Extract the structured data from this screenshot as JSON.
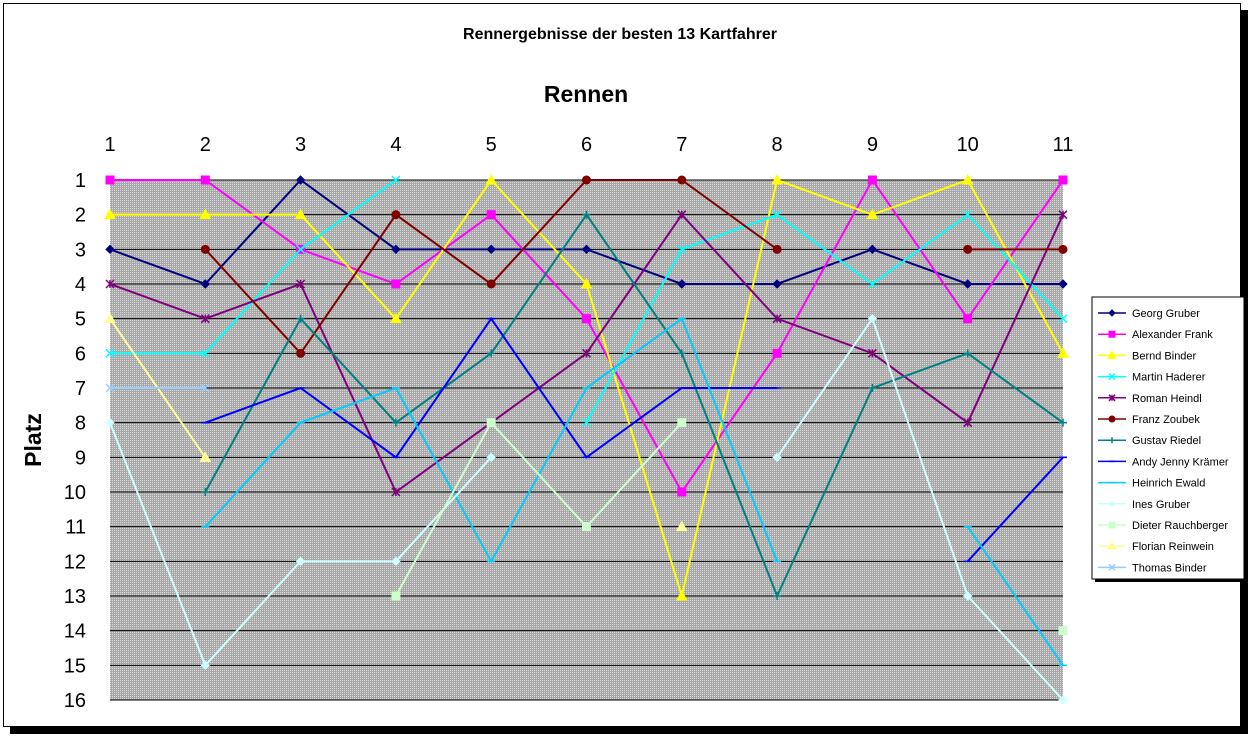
{
  "chart_data": {
    "type": "line",
    "title": "Rennergebnisse der besten 13 Kartfahrer",
    "xlabel": "Rennen",
    "ylabel": "Platz",
    "x": [
      1,
      2,
      3,
      4,
      5,
      6,
      7,
      8,
      9,
      10,
      11
    ],
    "ylim": [
      1,
      16
    ],
    "y_inverted": true,
    "x_axis_position": "top",
    "grid": true,
    "plot_background": "#c0c0c0",
    "legend_position": "right",
    "series": [
      {
        "name": "Georg Gruber",
        "color": "#000080",
        "marker": "diamond",
        "values": [
          3,
          4,
          1,
          3,
          3,
          3,
          4,
          4,
          3,
          4,
          4
        ]
      },
      {
        "name": "Alexander Frank",
        "color": "#ff00ff",
        "marker": "square",
        "values": [
          1,
          1,
          3,
          4,
          2,
          5,
          10,
          6,
          1,
          5,
          1
        ]
      },
      {
        "name": "Bernd Binder",
        "color": "#ffff00",
        "marker": "triangle",
        "values": [
          2,
          2,
          2,
          5,
          1,
          4,
          13,
          1,
          2,
          1,
          6
        ]
      },
      {
        "name": "Martin Haderer",
        "color": "#00ffff",
        "marker": "x",
        "values": [
          6,
          6,
          3,
          1,
          null,
          8,
          3,
          2,
          4,
          2,
          5
        ]
      },
      {
        "name": "Roman Heindl",
        "color": "#800080",
        "marker": "star",
        "values": [
          4,
          5,
          4,
          10,
          8,
          6,
          2,
          5,
          6,
          8,
          2
        ]
      },
      {
        "name": "Franz Zoubek",
        "color": "#800000",
        "marker": "circle",
        "values": [
          null,
          3,
          6,
          2,
          4,
          1,
          1,
          3,
          null,
          3,
          3
        ]
      },
      {
        "name": "Gustav Riedel",
        "color": "#008080",
        "marker": "plus",
        "values": [
          null,
          10,
          5,
          8,
          6,
          2,
          6,
          13,
          7,
          6,
          8
        ]
      },
      {
        "name": "Andy Jenny Krämer",
        "color": "#0000ff",
        "marker": "dash",
        "values": [
          null,
          8,
          7,
          9,
          5,
          9,
          7,
          7,
          null,
          12,
          9
        ]
      },
      {
        "name": "Heinrich Ewald",
        "color": "#00ccff",
        "marker": "dash",
        "values": [
          null,
          11,
          8,
          7,
          12,
          7,
          5,
          12,
          null,
          11,
          15
        ]
      },
      {
        "name": "Ines Gruber",
        "color": "#ccffff",
        "marker": "diamond",
        "values": [
          8,
          15,
          12,
          12,
          9,
          null,
          null,
          9,
          5,
          13,
          16
        ]
      },
      {
        "name": "Dieter Rauchberger",
        "color": "#ccffcc",
        "marker": "square",
        "values": [
          null,
          null,
          null,
          13,
          8,
          11,
          8,
          null,
          null,
          null,
          14
        ]
      },
      {
        "name": "Florian Reinwein",
        "color": "#ffff99",
        "marker": "triangle",
        "values": [
          5,
          9,
          null,
          null,
          null,
          null,
          11,
          null,
          null,
          null,
          null
        ]
      },
      {
        "name": "Thomas Binder",
        "color": "#99ccff",
        "marker": "x",
        "values": [
          7,
          7,
          null,
          null,
          null,
          null,
          null,
          null,
          null,
          null,
          null
        ]
      }
    ]
  }
}
